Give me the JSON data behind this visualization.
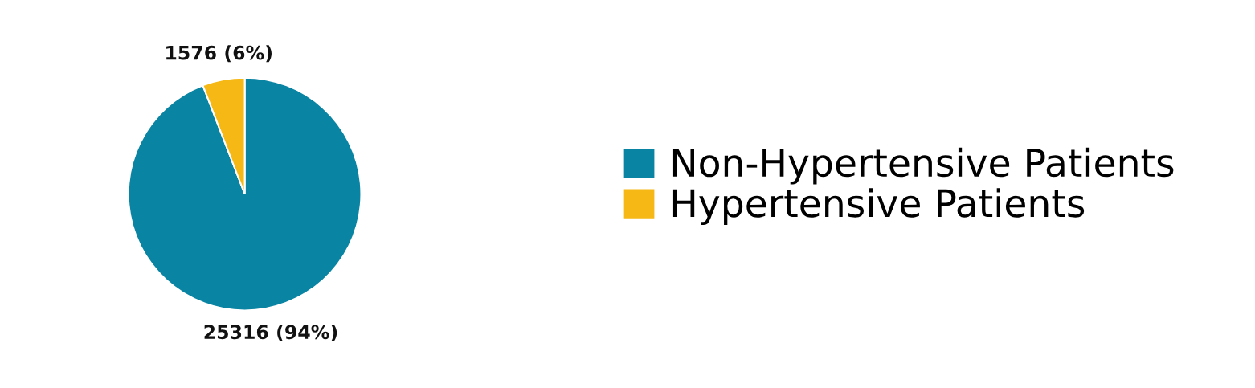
{
  "chart_data": {
    "type": "pie",
    "categories": [
      "Non-Hypertensive Patients",
      "Hypertensive Patients"
    ],
    "values": [
      25316,
      1576
    ],
    "colors": [
      "#0a84a3",
      "#f5b815"
    ],
    "value_labels": [
      "25316 (94%)",
      "1576 (6%)"
    ],
    "legend": "right"
  }
}
